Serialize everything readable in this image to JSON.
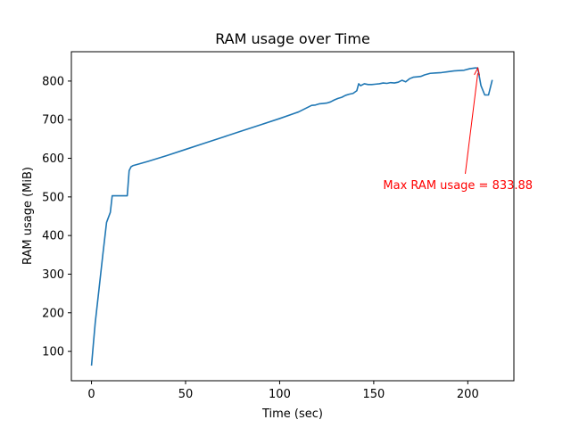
{
  "chart_data": {
    "type": "line",
    "title": "RAM usage over Time",
    "xlabel": "Time (sec)",
    "ylabel": "RAM usage (MiB)",
    "xlim": [
      -10.7,
      224.5
    ],
    "ylim": [
      24,
      876
    ],
    "xticks": [
      0,
      50,
      100,
      150,
      200
    ],
    "yticks": [
      100,
      200,
      300,
      400,
      500,
      600,
      700,
      800
    ],
    "grid": false,
    "legend": "none",
    "series": [
      {
        "color": "#1f77b4",
        "x": [
          0,
          1,
          2,
          4,
          6,
          8,
          10,
          11,
          13,
          15,
          17,
          19,
          20,
          21,
          22,
          25,
          30,
          40,
          50,
          60,
          70,
          80,
          90,
          100,
          110,
          117,
          119,
          121,
          123,
          125,
          127,
          129,
          131,
          133,
          135,
          137,
          139,
          141,
          142,
          143,
          145,
          147,
          149,
          151,
          153,
          155,
          157,
          159,
          161,
          163,
          165,
          167,
          169,
          171,
          173,
          175,
          177,
          180,
          183,
          186,
          189,
          192,
          195,
          198,
          201,
          204,
          205.3,
          207,
          209,
          211,
          213
        ],
        "y": [
          63,
          120,
          175,
          262,
          350,
          434,
          460,
          503,
          503,
          503,
          503,
          503,
          568,
          578,
          581,
          585,
          592,
          607,
          623,
          639,
          655,
          671,
          687,
          703,
          720,
          737,
          738,
          741,
          742,
          743,
          746,
          751,
          755,
          758,
          763,
          766,
          768,
          775,
          793,
          788,
          793,
          791,
          791,
          792,
          793,
          795,
          794,
          796,
          795,
          797,
          802,
          798,
          806,
          810,
          811,
          812,
          816,
          820,
          821,
          822,
          824,
          826,
          827,
          828,
          832,
          834,
          833.88,
          788,
          764,
          764,
          803
        ]
      }
    ],
    "annotation": {
      "text": "Max RAM usage = 833.88",
      "point": [
        205.3,
        833.88
      ],
      "text_pos": [
        155,
        532
      ],
      "color": "#ff0000"
    }
  }
}
